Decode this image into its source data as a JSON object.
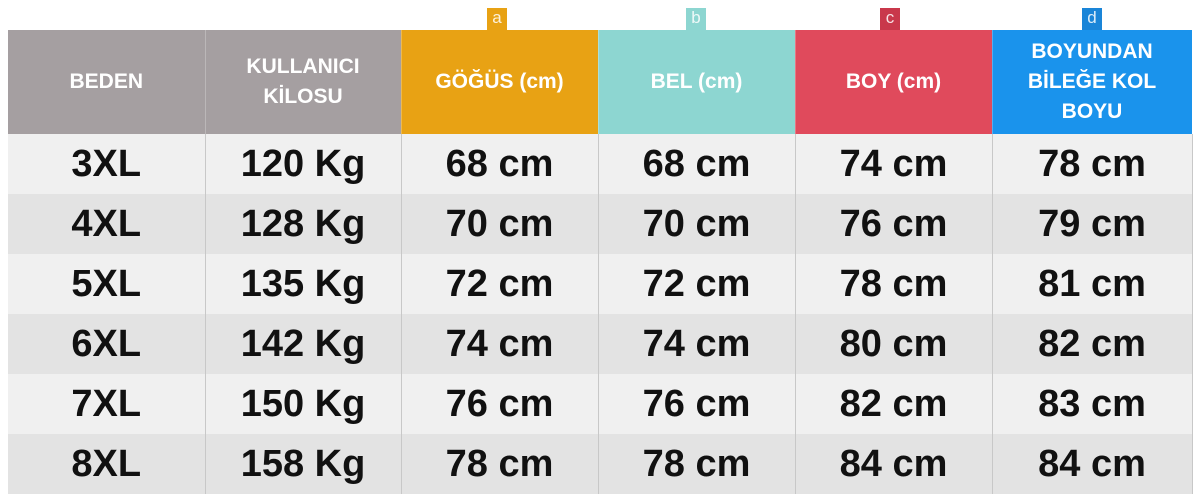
{
  "colors": {
    "gray": "#a59fa1",
    "gogus": "#e8a214",
    "bel": "#8dd6d1",
    "boy": "#e04a5c",
    "kol": "#1a93ec"
  },
  "tabs": [
    "a",
    "b",
    "c",
    "d"
  ],
  "headers": [
    "BEDEN",
    "KULLANICI KİLOSU",
    "GÖĞÜS (cm)",
    "BEL (cm)",
    "BOY (cm)",
    "BOYUNDAN BİLEĞE KOL BOYU"
  ],
  "rows": [
    [
      "3XL",
      "120 Kg",
      "68 cm",
      "68 cm",
      "74 cm",
      "78 cm"
    ],
    [
      "4XL",
      "128 Kg",
      "70 cm",
      "70 cm",
      "76 cm",
      "79 cm"
    ],
    [
      "5XL",
      "135 Kg",
      "72 cm",
      "72 cm",
      "78 cm",
      "81 cm"
    ],
    [
      "6XL",
      "142 Kg",
      "74 cm",
      "74 cm",
      "80 cm",
      "82 cm"
    ],
    [
      "7XL",
      "150 Kg",
      "76 cm",
      "76 cm",
      "82 cm",
      "83 cm"
    ],
    [
      "8XL",
      "158 Kg",
      "78 cm",
      "78 cm",
      "84 cm",
      "84 cm"
    ]
  ]
}
